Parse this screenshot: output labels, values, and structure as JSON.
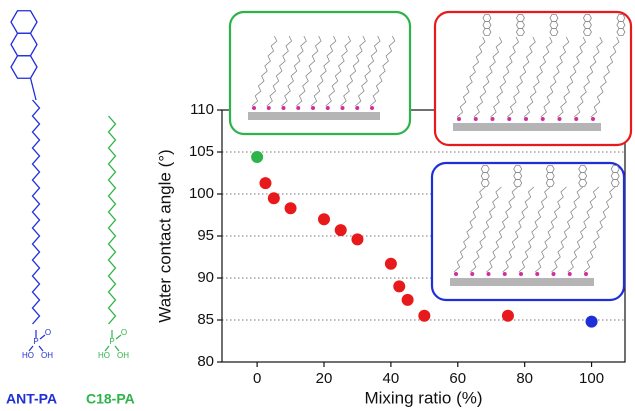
{
  "chart_data": {
    "type": "scatter",
    "x_label": "Mixing ratio (%)",
    "y_label": "Water contact angle (°)",
    "x": [
      0,
      2.5,
      5,
      10,
      20,
      25,
      30,
      40,
      42.5,
      45,
      50,
      75,
      100
    ],
    "values": [
      104.4,
      101.3,
      99.5,
      98.3,
      97.0,
      95.7,
      94.6,
      91.7,
      89.0,
      87.4,
      85.5,
      85.5,
      84.8
    ],
    "colors": [
      "#2db34a",
      "#e8191b",
      "#e8191b",
      "#e8191b",
      "#e8191b",
      "#e8191b",
      "#e8191b",
      "#e8191b",
      "#e8191b",
      "#e8191b",
      "#e8191b",
      "#e8191b",
      "#1f2fd8"
    ],
    "xlim": [
      -10.5,
      110
    ],
    "ylim": [
      80,
      110
    ],
    "xticks": [
      0,
      20,
      40,
      60,
      80,
      100
    ],
    "yticks": [
      80,
      85,
      90,
      95,
      100,
      105,
      110
    ],
    "grid": true
  },
  "molecules": [
    {
      "name": "ANT-PA",
      "color": "#1f2fd8",
      "labels": [
        "P",
        "O",
        "HO",
        "OH"
      ]
    },
    {
      "name": "C18-PA",
      "color": "#2db34a",
      "labels": [
        "P",
        "O",
        "HO",
        "OH"
      ]
    }
  ]
}
